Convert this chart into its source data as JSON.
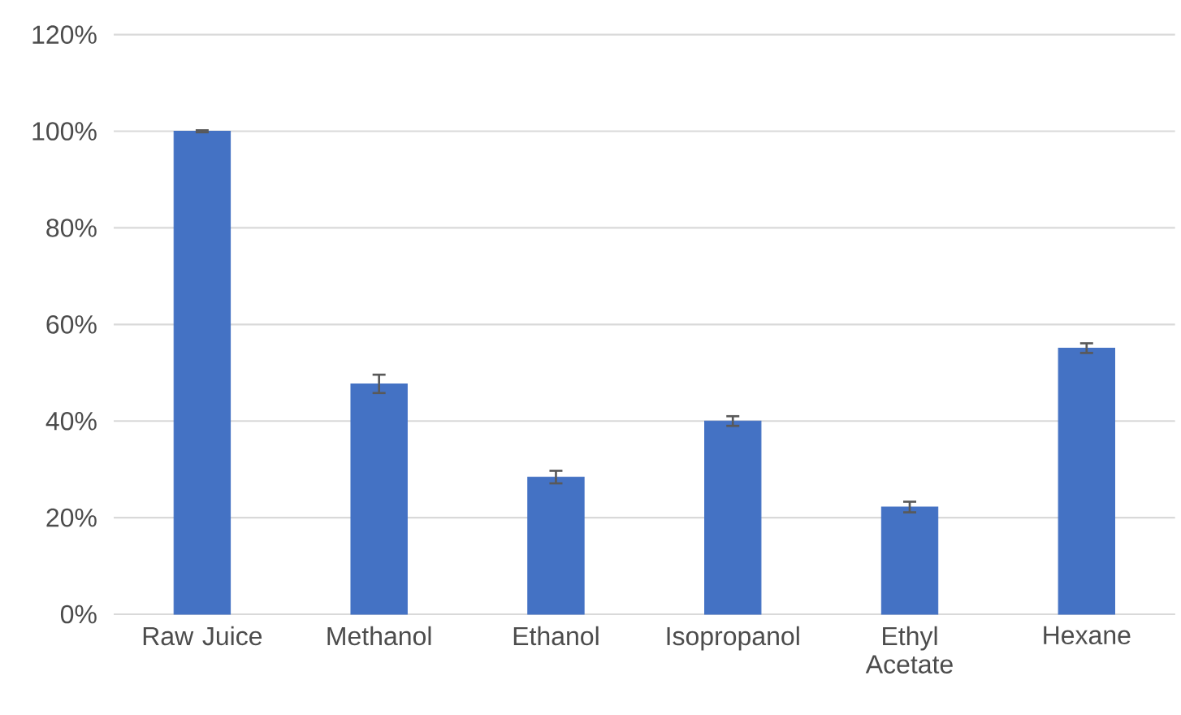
{
  "chart_data": {
    "type": "bar",
    "categories": [
      "Raw Juice",
      "Methanol",
      "Ethanol",
      "Isopropanol",
      "Ethyl Acetate",
      "Hexane"
    ],
    "values": [
      100,
      47.7,
      28.4,
      40,
      22.2,
      55.1
    ],
    "errors": [
      0.2,
      1.9,
      1.3,
      1.0,
      1.1,
      1.0
    ],
    "color": "#4472c4",
    "ylim": [
      0,
      120
    ],
    "yticks": [
      {
        "value": 0,
        "label": "0%"
      },
      {
        "value": 20,
        "label": "20%"
      },
      {
        "value": 40,
        "label": "40%"
      },
      {
        "value": 60,
        "label": "60%"
      },
      {
        "value": 80,
        "label": "80%"
      },
      {
        "value": 100,
        "label": "100%"
      },
      {
        "value": 120,
        "label": "120%"
      }
    ],
    "grid": "y"
  }
}
